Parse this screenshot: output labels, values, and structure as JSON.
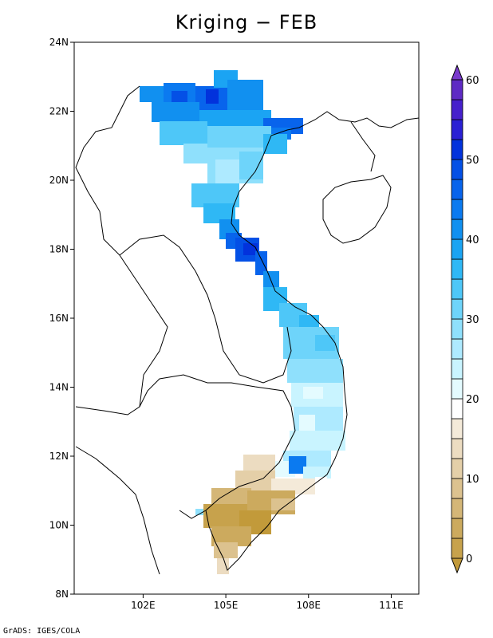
{
  "title": "Kriging − FEB",
  "credit": "GrADS: IGES/COLA",
  "map": {
    "lon_range": [
      99.5,
      112.0
    ],
    "lat_range": [
      8,
      24
    ],
    "lat_ticks": [
      {
        "value": 8,
        "label": "8N"
      },
      {
        "value": 10,
        "label": "10N"
      },
      {
        "value": 12,
        "label": "12N"
      },
      {
        "value": 14,
        "label": "14N"
      },
      {
        "value": 16,
        "label": "16N"
      },
      {
        "value": 18,
        "label": "18N"
      },
      {
        "value": 20,
        "label": "20N"
      },
      {
        "value": 22,
        "label": "22N"
      },
      {
        "value": 24,
        "label": "24N"
      }
    ],
    "lon_ticks": [
      {
        "value": 102,
        "label": "102E"
      },
      {
        "value": 105,
        "label": "105E"
      },
      {
        "value": 108,
        "label": "108E"
      },
      {
        "value": 111,
        "label": "111E"
      }
    ]
  },
  "colorbar": {
    "min": 0,
    "max": 60,
    "step": 2.5,
    "labels": [
      {
        "value": 0,
        "label": "0"
      },
      {
        "value": 10,
        "label": "10"
      },
      {
        "value": 20,
        "label": "20"
      },
      {
        "value": 30,
        "label": "30"
      },
      {
        "value": 40,
        "label": "40"
      },
      {
        "value": 50,
        "label": "50"
      },
      {
        "value": 60,
        "label": "60"
      }
    ],
    "colors": [
      "#c29a3a",
      "#c7a24c",
      "#ccaa5e",
      "#d4b677",
      "#dcc28f",
      "#e4cfa8",
      "#ecdcc1",
      "#f4ead9",
      "#ffffff",
      "#e4fbff",
      "#c9f4ff",
      "#aeeaff",
      "#8fe0fc",
      "#6ed4fa",
      "#4ec7f8",
      "#2fb8f5",
      "#1ba4f3",
      "#1190f0",
      "#0b7af0",
      "#0864ec",
      "#0450e6",
      "#0232dc",
      "#2a20d4",
      "#4620cc",
      "#5e2ac4",
      "#7a3acc"
    ]
  }
}
